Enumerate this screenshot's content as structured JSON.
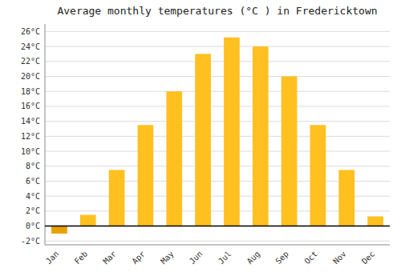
{
  "chart_data": {
    "type": "bar",
    "title": "Average monthly temperatures (°C ) in Fredericktown",
    "categories": [
      "Jan",
      "Feb",
      "Mar",
      "Apr",
      "May",
      "Jun",
      "Jul",
      "Aug",
      "Sep",
      "Oct",
      "Nov",
      "Dec"
    ],
    "values": [
      -1.0,
      1.5,
      7.5,
      13.5,
      18.0,
      23.0,
      25.2,
      24.0,
      20.0,
      13.5,
      7.5,
      1.3
    ],
    "colors": [
      "#E8A000",
      "#FFC020",
      "#FFC020",
      "#FFC020",
      "#FFC020",
      "#FFC020",
      "#FFC020",
      "#FFC020",
      "#FFC020",
      "#FFC020",
      "#FFC020",
      "#FFC020"
    ],
    "ylim": [
      -2.5,
      27
    ],
    "yticks": [
      {
        "value": -2,
        "label": "-2°C"
      },
      {
        "value": 0,
        "label": "0°C"
      },
      {
        "value": 2,
        "label": "2°C"
      },
      {
        "value": 4,
        "label": "4°C"
      },
      {
        "value": 6,
        "label": "6°C"
      },
      {
        "value": 8,
        "label": "8°C"
      },
      {
        "value": 10,
        "label": "10°C"
      },
      {
        "value": 12,
        "label": "12°C"
      },
      {
        "value": 14,
        "label": "14°C"
      },
      {
        "value": 16,
        "label": "16°C"
      },
      {
        "value": 18,
        "label": "18°C"
      },
      {
        "value": 20,
        "label": "20°C"
      },
      {
        "value": 22,
        "label": "22°C"
      },
      {
        "value": 24,
        "label": "24°C"
      },
      {
        "value": 26,
        "label": "26°C"
      }
    ],
    "grid": true
  }
}
